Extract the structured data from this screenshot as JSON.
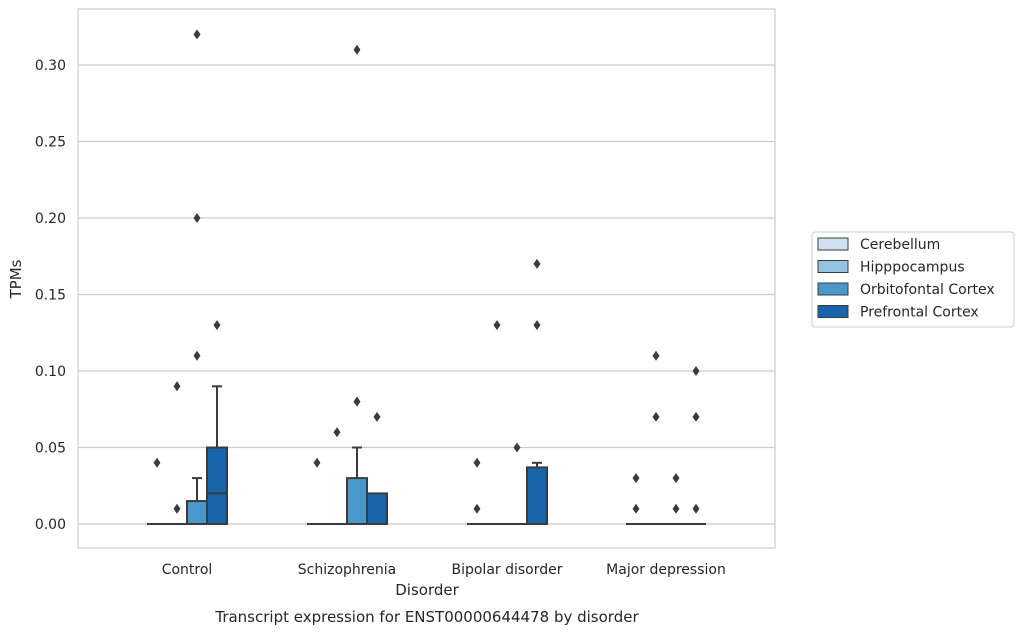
{
  "chart_data": {
    "type": "box",
    "title": "",
    "caption": "Transcript expression for ENST00000644478 by disorder",
    "xlabel": "Disorder",
    "ylabel": "TPMs",
    "ylim": [
      -0.015,
      0.337
    ],
    "yticks": [
      "0.00",
      "0.05",
      "0.10",
      "0.15",
      "0.20",
      "0.25",
      "0.30"
    ],
    "ytick_values": [
      0,
      0.05,
      0.1,
      0.15,
      0.2,
      0.25,
      0.3
    ],
    "grid": "horizontal",
    "legend_position": "right",
    "categories": [
      "Control",
      "Schizophrenia",
      "Bipolar disorder",
      "Major depression"
    ],
    "series": [
      {
        "name": "Cerebellum",
        "color": "#d0e1f2",
        "boxes": [
          {
            "q1": 0,
            "median": 0,
            "q3": 0,
            "whisker_low": 0,
            "whisker_high": 0,
            "outliers": [
              0.04
            ]
          },
          {
            "q1": 0,
            "median": 0,
            "q3": 0,
            "whisker_low": 0,
            "whisker_high": 0,
            "outliers": [
              0.04
            ]
          },
          {
            "q1": 0,
            "median": 0,
            "q3": 0,
            "whisker_low": 0,
            "whisker_high": 0,
            "outliers": [
              0.04,
              0.01
            ]
          },
          {
            "q1": 0,
            "median": 0,
            "q3": 0,
            "whisker_low": 0,
            "whisker_high": 0,
            "outliers": [
              0.03,
              0.01
            ]
          }
        ]
      },
      {
        "name": "Hipppocampus",
        "color": "#94c4df",
        "boxes": [
          {
            "q1": 0,
            "median": 0,
            "q3": 0,
            "whisker_low": 0,
            "whisker_high": 0,
            "outliers": [
              0.09,
              0.01
            ]
          },
          {
            "q1": 0,
            "median": 0,
            "q3": 0,
            "whisker_low": 0,
            "whisker_high": 0,
            "outliers": [
              0.06
            ]
          },
          {
            "q1": 0,
            "median": 0,
            "q3": 0,
            "whisker_low": 0,
            "whisker_high": 0,
            "outliers": [
              0.13
            ]
          },
          {
            "q1": 0,
            "median": 0,
            "q3": 0,
            "whisker_low": 0,
            "whisker_high": 0,
            "outliers": [
              0.11,
              0.07
            ]
          }
        ]
      },
      {
        "name": "Orbitofontal Cortex",
        "color": "#4a98c9",
        "boxes": [
          {
            "q1": 0,
            "median": 0,
            "q3": 0.015,
            "whisker_low": 0,
            "whisker_high": 0.03,
            "outliers": [
              0.32,
              0.2,
              0.11
            ]
          },
          {
            "q1": 0,
            "median": 0,
            "q3": 0.03,
            "whisker_low": 0,
            "whisker_high": 0.05,
            "outliers": [
              0.31,
              0.08
            ]
          },
          {
            "q1": 0,
            "median": 0,
            "q3": 0,
            "whisker_low": 0,
            "whisker_high": 0,
            "outliers": [
              0.05
            ]
          },
          {
            "q1": 0,
            "median": 0,
            "q3": 0,
            "whisker_low": 0,
            "whisker_high": 0,
            "outliers": [
              0.03,
              0.01
            ]
          }
        ]
      },
      {
        "name": "Prefrontal Cortex",
        "color": "#1764ab",
        "boxes": [
          {
            "q1": 0,
            "median": 0.02,
            "q3": 0.05,
            "whisker_low": 0,
            "whisker_high": 0.09,
            "outliers": [
              0.13
            ]
          },
          {
            "q1": 0,
            "median": 0,
            "q3": 0.02,
            "whisker_low": 0,
            "whisker_high": 0.02,
            "outliers": [
              0.07
            ]
          },
          {
            "q1": 0,
            "median": 0,
            "q3": 0.037,
            "whisker_low": 0,
            "whisker_high": 0.04,
            "outliers": [
              0.17,
              0.13
            ]
          },
          {
            "q1": 0,
            "median": 0,
            "q3": 0,
            "whisker_low": 0,
            "whisker_high": 0,
            "outliers": [
              0.1,
              0.07,
              0.01
            ]
          }
        ]
      }
    ]
  }
}
